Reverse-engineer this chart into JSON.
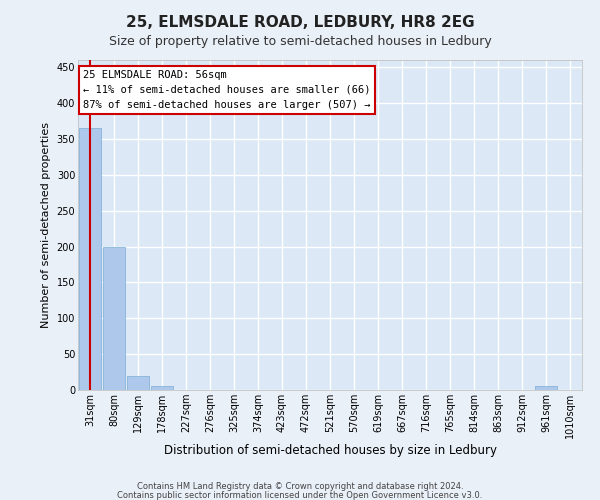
{
  "title": "25, ELMSDALE ROAD, LEDBURY, HR8 2EG",
  "subtitle": "Size of property relative to semi-detached houses in Ledbury",
  "xlabel": "Distribution of semi-detached houses by size in Ledbury",
  "ylabel": "Number of semi-detached properties",
  "footnote1": "Contains HM Land Registry data © Crown copyright and database right 2024.",
  "footnote2": "Contains public sector information licensed under the Open Government Licence v3.0.",
  "bin_labels": [
    "31sqm",
    "80sqm",
    "129sqm",
    "178sqm",
    "227sqm",
    "276sqm",
    "325sqm",
    "374sqm",
    "423sqm",
    "472sqm",
    "521sqm",
    "570sqm",
    "619sqm",
    "667sqm",
    "716sqm",
    "765sqm",
    "814sqm",
    "863sqm",
    "912sqm",
    "961sqm",
    "1010sqm"
  ],
  "bar_values": [
    365,
    200,
    20,
    6,
    0,
    0,
    0,
    0,
    0,
    0,
    0,
    0,
    0,
    0,
    0,
    0,
    0,
    0,
    0,
    5,
    0
  ],
  "bar_color": "#adc8ea",
  "bar_edge_color": "#7aadd4",
  "ylim_max": 460,
  "yticks": [
    0,
    50,
    100,
    150,
    200,
    250,
    300,
    350,
    400,
    450
  ],
  "vline_color": "#cc0000",
  "annotation_line1": "25 ELMSDALE ROAD: 56sqm",
  "annotation_line2": "← 11% of semi-detached houses are smaller (66)",
  "annotation_line3": "87% of semi-detached houses are larger (507) →",
  "annotation_box_color": "#ffffff",
  "annotation_border_color": "#cc0000",
  "plot_bg_color": "#dce8f5",
  "fig_bg_color": "#eaf0f8",
  "grid_color": "#ffffff",
  "title_fontsize": 11,
  "subtitle_fontsize": 9,
  "ylabel_fontsize": 8,
  "xlabel_fontsize": 8.5,
  "tick_fontsize": 7,
  "annotation_fontsize": 7.5,
  "footnote_fontsize": 6
}
